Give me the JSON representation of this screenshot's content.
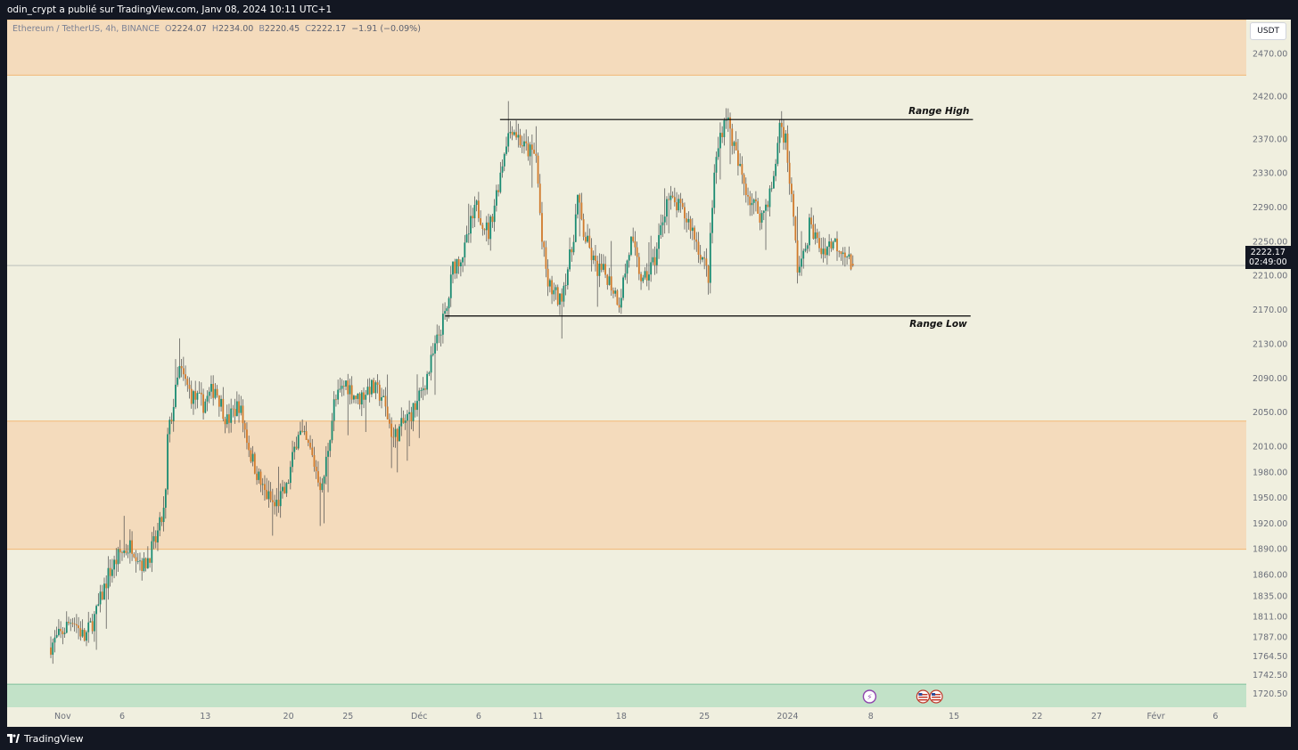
{
  "header": {
    "publisher": "odin_crypt a publié sur TradingView.com, Janv 08, 2024 10:11 UTC+1"
  },
  "legend": {
    "symbol": "Ethereum / TetherUS, 4h, BINANCE",
    "o_label": "O",
    "o": "2224.07",
    "h_label": "H",
    "h": "2234.00",
    "l_label": "B",
    "l": "2220.45",
    "c_label": "C",
    "c": "2222.17",
    "change": "−1.91 (−0.09%)"
  },
  "currency_button": "USDT",
  "current_price": {
    "value": "2222.17",
    "countdown": "02:49:00"
  },
  "footer": {
    "brand": "TradingView"
  },
  "colors": {
    "background": "#f0efdf",
    "zone": "#f4dbbc",
    "zone_border": "#f2b875",
    "demand_zone": "#c2e2c8",
    "up_candle": "#1a8b72",
    "down_candle": "#d07a2c",
    "wick": "#4a4a4a",
    "range_line": "#000000"
  },
  "chart_data": {
    "type": "candlestick",
    "symbol": "ETHUSDT",
    "interval": "4h",
    "ylim": [
      1705,
      2510
    ],
    "y_ticks": [
      "2470.00",
      "2420.00",
      "2370.00",
      "2330.00",
      "2290.00",
      "2250.00",
      "2210.00",
      "2170.00",
      "2130.00",
      "2090.00",
      "2050.00",
      "2010.00",
      "1980.00",
      "1950.00",
      "1920.00",
      "1890.00",
      "1860.00",
      "1835.00",
      "1811.00",
      "1787.00",
      "1764.50",
      "1742.50",
      "1720.50"
    ],
    "x_ticks": [
      {
        "label": "Nov",
        "day": 1
      },
      {
        "label": "6",
        "day": 6
      },
      {
        "label": "13",
        "day": 13
      },
      {
        "label": "20",
        "day": 20
      },
      {
        "label": "25",
        "day": 25
      },
      {
        "label": "Déc",
        "day": 31
      },
      {
        "label": "6",
        "day": 36
      },
      {
        "label": "11",
        "day": 41
      },
      {
        "label": "18",
        "day": 48
      },
      {
        "label": "25",
        "day": 55
      },
      {
        "label": "2024",
        "day": 62
      },
      {
        "label": "8",
        "day": 69
      },
      {
        "label": "15",
        "day": 76
      },
      {
        "label": "22",
        "day": 83
      },
      {
        "label": "27",
        "day": 88
      },
      {
        "label": "Févr",
        "day": 93
      },
      {
        "label": "6",
        "day": 98
      }
    ],
    "zones": [
      {
        "from": 2445,
        "to": 2510
      },
      {
        "from": 1890,
        "to": 2040
      }
    ],
    "demand_zone": {
      "from": 1705,
      "to": 1732
    },
    "current_price_line": 2222.17,
    "range_lines": [
      {
        "name": "Range High",
        "price": 2393,
        "from_day": 37.8,
        "to_day": 77.6
      },
      {
        "name": "Range Low",
        "price": 2163,
        "from_day": 33.2,
        "to_day": 77.4
      }
    ],
    "event_icons": [
      {
        "day": 68.9,
        "symbol": "⚡"
      },
      {
        "day": 73.4,
        "symbol": "us-flag"
      },
      {
        "day": 74.5,
        "symbol": "us-flag"
      }
    ],
    "path": [
      [
        0.0,
        1775
      ],
      [
        1.0,
        1790
      ],
      [
        2.0,
        1810
      ],
      [
        3.0,
        1785
      ],
      [
        4.0,
        1815
      ],
      [
        5.0,
        1860
      ],
      [
        6.0,
        1885
      ],
      [
        7.0,
        1895
      ],
      [
        8.0,
        1870
      ],
      [
        9.0,
        1900
      ],
      [
        9.8,
        1940
      ],
      [
        10.0,
        2020
      ],
      [
        11.0,
        2100
      ],
      [
        12.0,
        2070
      ],
      [
        13.0,
        2060
      ],
      [
        14.0,
        2080
      ],
      [
        15.0,
        2040
      ],
      [
        16.0,
        2060
      ],
      [
        17.0,
        2000
      ],
      [
        18.0,
        1960
      ],
      [
        19.0,
        1940
      ],
      [
        20.0,
        1960
      ],
      [
        21.0,
        2030
      ],
      [
        22.0,
        2005
      ],
      [
        23.0,
        1960
      ],
      [
        24.0,
        2060
      ],
      [
        25.0,
        2085
      ],
      [
        26.0,
        2065
      ],
      [
        27.0,
        2080
      ],
      [
        28.0,
        2070
      ],
      [
        29.0,
        2020
      ],
      [
        30.0,
        2040
      ],
      [
        31.0,
        2060
      ],
      [
        32.0,
        2100
      ],
      [
        33.0,
        2150
      ],
      [
        33.5,
        2170
      ],
      [
        34.0,
        2220
      ],
      [
        35.0,
        2240
      ],
      [
        35.5,
        2270
      ],
      [
        36.0,
        2290
      ],
      [
        37.0,
        2260
      ],
      [
        38.0,
        2330
      ],
      [
        38.5,
        2370
      ],
      [
        39.0,
        2385
      ],
      [
        40.0,
        2360
      ],
      [
        41.0,
        2350
      ],
      [
        41.5,
        2250
      ],
      [
        42.0,
        2200
      ],
      [
        43.0,
        2180
      ],
      [
        44.0,
        2240
      ],
      [
        44.5,
        2300
      ],
      [
        45.0,
        2260
      ],
      [
        46.0,
        2220
      ],
      [
        47.0,
        2210
      ],
      [
        48.0,
        2180
      ],
      [
        49.0,
        2250
      ],
      [
        50.0,
        2200
      ],
      [
        51.0,
        2230
      ],
      [
        52.0,
        2300
      ],
      [
        53.0,
        2290
      ],
      [
        54.0,
        2270
      ],
      [
        55.0,
        2230
      ],
      [
        55.5,
        2210
      ],
      [
        56.0,
        2330
      ],
      [
        56.5,
        2375
      ],
      [
        57.0,
        2400
      ],
      [
        57.5,
        2370
      ],
      [
        58.0,
        2340
      ],
      [
        59.0,
        2300
      ],
      [
        60.0,
        2280
      ],
      [
        61.0,
        2320
      ],
      [
        61.5,
        2390
      ],
      [
        62.0,
        2370
      ],
      [
        62.5,
        2300
      ],
      [
        63.0,
        2220
      ],
      [
        63.5,
        2230
      ],
      [
        64.0,
        2270
      ],
      [
        65.0,
        2240
      ],
      [
        66.0,
        2250
      ],
      [
        67.0,
        2240
      ],
      [
        67.5,
        2222.17
      ]
    ],
    "last_candle": {
      "o": 2224.07,
      "h": 2234.0,
      "l": 2220.45,
      "c": 2222.17
    }
  }
}
